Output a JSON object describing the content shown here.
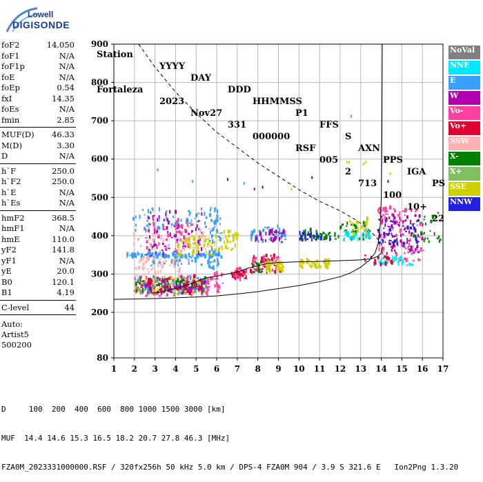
{
  "logo": {
    "line1": "Lowell",
    "line2": "DIGISONDE"
  },
  "header": {
    "labels": [
      "Station",
      "YYYY",
      "DAY",
      "DDD",
      "HHMMSS",
      "P1",
      "FFS",
      "S",
      "AXN",
      "PPS",
      "IGA",
      "PS"
    ],
    "values": [
      "Fortaleza",
      "2023",
      "Nov27",
      "331",
      "000000",
      "RSF",
      "005",
      "2",
      "713",
      "100",
      "10+",
      "22"
    ]
  },
  "params": {
    "group1": [
      {
        "label": "foF2",
        "value": "14.050"
      },
      {
        "label": "foF1",
        "value": "N/A"
      },
      {
        "label": "foF1p",
        "value": "N/A"
      },
      {
        "label": "foE",
        "value": "N/A"
      },
      {
        "label": "foEp",
        "value": "0.54"
      },
      {
        "label": "fxI",
        "value": "14.35"
      },
      {
        "label": "foEs",
        "value": "N/A"
      },
      {
        "label": "fmin",
        "value": "2.85"
      }
    ],
    "group2": [
      {
        "label": "MUF(D)",
        "value": "46.33"
      },
      {
        "label": "M(D)",
        "value": "3.30"
      },
      {
        "label": "D",
        "value": "N/A"
      }
    ],
    "group3": [
      {
        "label": "h`F",
        "value": "250.0"
      },
      {
        "label": "h`F2",
        "value": "250.0"
      },
      {
        "label": "h`E",
        "value": "N/A"
      },
      {
        "label": "h`Es",
        "value": "N/A"
      }
    ],
    "group4": [
      {
        "label": "hmF2",
        "value": "368.5"
      },
      {
        "label": "hmF1",
        "value": "N/A"
      },
      {
        "label": "hmE",
        "value": "110.0"
      },
      {
        "label": "yF2",
        "value": "141.8"
      },
      {
        "label": "yF1",
        "value": "N/A"
      },
      {
        "label": "yE",
        "value": "20.0"
      },
      {
        "label": "B0",
        "value": "120.1"
      },
      {
        "label": "B1",
        "value": "4.19"
      }
    ],
    "group5": [
      {
        "label": "C-level",
        "value": "44"
      }
    ],
    "auto": [
      "Auto:",
      "Artist5",
      "500200"
    ]
  },
  "legend": [
    {
      "label": "NoVal",
      "color": "#808080"
    },
    {
      "label": "NNE",
      "color": "#00e8ff"
    },
    {
      "label": "E",
      "color": "#3aa0ff"
    },
    {
      "label": "W",
      "color": "#b000b0"
    },
    {
      "label": "Vo-",
      "color": "#ff40a0"
    },
    {
      "label": "Vo+",
      "color": "#e00030"
    },
    {
      "label": "SSW",
      "color": "#ffb0b0"
    },
    {
      "label": "X-",
      "color": "#008000"
    },
    {
      "label": "X+",
      "color": "#80c060"
    },
    {
      "label": "SSE",
      "color": "#d0d000"
    },
    {
      "label": "NNW",
      "color": "#2020e0"
    }
  ],
  "footer": {
    "line1": "D     100  200  400  600  800 1000 1500 3000 [km]",
    "line2": "MUF  14.4 14.6 15.3 16.5 18.2 20.7 27.8 46.3 [MHz]",
    "line3": "FZA0M_2023331000000.RSF / 320fx256h 50 kHz 5.0 km / DPS-4 FZA0M 904 / 3.9 S 321.6 E   Ion2Png 1.3.20"
  },
  "chart_data": {
    "type": "scatter",
    "xlim": [
      1,
      17
    ],
    "ylim": [
      80,
      900
    ],
    "x_ticks": [
      1,
      2,
      3,
      4,
      5,
      6,
      7,
      8,
      9,
      10,
      11,
      12,
      13,
      14,
      15,
      16,
      17
    ],
    "y_ticks": [
      80,
      200,
      300,
      400,
      500,
      600,
      700,
      800,
      900
    ],
    "grid": true,
    "clusters": [
      {
        "f0": 1.9,
        "f1": 5.6,
        "h0": 240,
        "h1": 290,
        "color": "#ff40a0",
        "n": 120
      },
      {
        "f0": 2.0,
        "f1": 5.5,
        "h0": 245,
        "h1": 285,
        "color": "#d0d000",
        "n": 90
      },
      {
        "f0": 2.0,
        "f1": 5.5,
        "h0": 250,
        "h1": 285,
        "color": "#008000",
        "n": 60
      },
      {
        "f0": 2.0,
        "f1": 5.5,
        "h0": 245,
        "h1": 290,
        "color": "#3aa0ff",
        "n": 60
      },
      {
        "f0": 2.2,
        "f1": 5.4,
        "h0": 250,
        "h1": 280,
        "color": "#b000b0",
        "n": 50
      },
      {
        "f0": 2.2,
        "f1": 5.4,
        "h0": 245,
        "h1": 290,
        "color": "#e00030",
        "n": 50
      },
      {
        "f0": 5.5,
        "f1": 6.3,
        "h0": 250,
        "h1": 300,
        "color": "#ff40a0",
        "n": 25
      },
      {
        "f0": 6.8,
        "f1": 7.4,
        "h0": 280,
        "h1": 310,
        "color": "#ff40a0",
        "n": 30
      },
      {
        "f0": 6.6,
        "f1": 7.4,
        "h0": 285,
        "h1": 305,
        "color": "#e00030",
        "n": 20
      },
      {
        "f0": 7.6,
        "f1": 9.1,
        "h0": 300,
        "h1": 345,
        "color": "#e00030",
        "n": 40
      },
      {
        "f0": 7.6,
        "f1": 9.0,
        "h0": 305,
        "h1": 340,
        "color": "#ff40a0",
        "n": 30
      },
      {
        "f0": 8.3,
        "f1": 9.2,
        "h0": 300,
        "h1": 330,
        "color": "#d0d000",
        "n": 40
      },
      {
        "f0": 7.7,
        "f1": 8.2,
        "h0": 300,
        "h1": 330,
        "color": "#008000",
        "n": 15
      },
      {
        "f0": 10.0,
        "f1": 11.5,
        "h0": 310,
        "h1": 335,
        "color": "#d0d000",
        "n": 50
      },
      {
        "f0": 2.0,
        "f1": 4.2,
        "h0": 290,
        "h1": 340,
        "color": "#ffb0b0",
        "n": 60
      },
      {
        "f0": 2.6,
        "f1": 5.5,
        "h0": 320,
        "h1": 350,
        "color": "#3aa0ff",
        "n": 40
      },
      {
        "f0": 5.5,
        "f1": 6.1,
        "h0": 310,
        "h1": 335,
        "color": "#3aa0ff",
        "n": 20
      },
      {
        "f0": 1.6,
        "f1": 6.2,
        "h0": 340,
        "h1": 350,
        "color": "#3aa0ff",
        "n": 100
      },
      {
        "f0": 2.5,
        "f1": 5.3,
        "h0": 345,
        "h1": 460,
        "color": "#b000b0",
        "n": 80
      },
      {
        "f0": 2.5,
        "f1": 5.0,
        "h0": 350,
        "h1": 440,
        "color": "#ff40a0",
        "n": 40
      },
      {
        "f0": 1.9,
        "f1": 5.6,
        "h0": 360,
        "h1": 420,
        "color": "#ffb0b0",
        "n": 50
      },
      {
        "f0": 1.9,
        "f1": 5.6,
        "h0": 410,
        "h1": 470,
        "color": "#3aa0ff",
        "n": 50
      },
      {
        "f0": 4.0,
        "f1": 6.0,
        "h0": 345,
        "h1": 400,
        "color": "#d0d000",
        "n": 50
      },
      {
        "f0": 5.6,
        "f1": 6.2,
        "h0": 350,
        "h1": 470,
        "color": "#3aa0ff",
        "n": 40
      },
      {
        "f0": 6.0,
        "f1": 7.0,
        "h0": 360,
        "h1": 410,
        "color": "#d0d000",
        "n": 30
      },
      {
        "f0": 7.6,
        "f1": 9.4,
        "h0": 380,
        "h1": 420,
        "color": "#3aa0ff",
        "n": 50
      },
      {
        "f0": 7.8,
        "f1": 9.4,
        "h0": 380,
        "h1": 410,
        "color": "#b000b0",
        "n": 30
      },
      {
        "f0": 10.0,
        "f1": 11.5,
        "h0": 385,
        "h1": 410,
        "color": "#008000",
        "n": 40
      },
      {
        "f0": 10.0,
        "f1": 11.5,
        "h0": 385,
        "h1": 405,
        "color": "#2020e0",
        "n": 25
      },
      {
        "f0": 11.7,
        "f1": 13.4,
        "h0": 385,
        "h1": 430,
        "color": "#008000",
        "n": 40
      },
      {
        "f0": 12.0,
        "f1": 13.5,
        "h0": 385,
        "h1": 410,
        "color": "#00e8ff",
        "n": 30
      },
      {
        "f0": 12.3,
        "f1": 13.3,
        "h0": 400,
        "h1": 440,
        "color": "#d0d000",
        "n": 20
      },
      {
        "f0": 13.8,
        "f1": 16.0,
        "h0": 330,
        "h1": 470,
        "color": "#ff40a0",
        "n": 90
      },
      {
        "f0": 13.8,
        "f1": 16.0,
        "h0": 350,
        "h1": 450,
        "color": "#b000b0",
        "n": 70
      },
      {
        "f0": 13.8,
        "f1": 15.8,
        "h0": 370,
        "h1": 440,
        "color": "#2020e0",
        "n": 40
      },
      {
        "f0": 13.8,
        "f1": 15.5,
        "h0": 320,
        "h1": 340,
        "color": "#00e8ff",
        "n": 30
      },
      {
        "f0": 15.5,
        "f1": 17.0,
        "h0": 380,
        "h1": 460,
        "color": "#008000",
        "n": 25
      },
      {
        "f0": 13.0,
        "f1": 14.5,
        "h0": 320,
        "h1": 350,
        "color": "#e00030",
        "n": 20
      }
    ],
    "sparse_points": [
      {
        "x": 3.1,
        "y": 570,
        "color": "#3aa0ff"
      },
      {
        "x": 4.8,
        "y": 540,
        "color": "#3aa0ff"
      },
      {
        "x": 6.5,
        "y": 545,
        "color": "#2020e0"
      },
      {
        "x": 7.3,
        "y": 535,
        "color": "#3aa0ff"
      },
      {
        "x": 7.8,
        "y": 520,
        "color": "#b000b0"
      },
      {
        "x": 8.2,
        "y": 525,
        "color": "#2020e0"
      },
      {
        "x": 9.6,
        "y": 520,
        "color": "#d0d000"
      },
      {
        "x": 12.3,
        "y": 590,
        "color": "#d0d000"
      },
      {
        "x": 12.4,
        "y": 590,
        "color": "#d0d000"
      },
      {
        "x": 12.5,
        "y": 710,
        "color": "#3aa0ff"
      },
      {
        "x": 13.1,
        "y": 585,
        "color": "#d0d000"
      },
      {
        "x": 13.2,
        "y": 590,
        "color": "#d0d000"
      },
      {
        "x": 14.2,
        "y": 600,
        "color": "#80c060"
      },
      {
        "x": 14.3,
        "y": 540,
        "color": "#2020e0"
      },
      {
        "x": 14.4,
        "y": 560,
        "color": "#d0d000"
      },
      {
        "x": 10.6,
        "y": 550,
        "color": "#2020e0"
      }
    ],
    "virtual_height_trace": [
      [
        2.85,
        250
      ],
      [
        3.2,
        252
      ],
      [
        3.6,
        258
      ],
      [
        4.0,
        262
      ],
      [
        4.5,
        270
      ],
      [
        5.0,
        280
      ],
      [
        5.5,
        290
      ],
      [
        6.0,
        295
      ],
      [
        6.5,
        300
      ],
      [
        7.0,
        305
      ],
      [
        7.5,
        315
      ],
      [
        8.0,
        322
      ],
      [
        8.5,
        328
      ],
      [
        9.0,
        330
      ],
      [
        10.0,
        332
      ],
      [
        11.0,
        333
      ],
      [
        12.0,
        335
      ],
      [
        13.0,
        337
      ],
      [
        13.5,
        340
      ],
      [
        13.8,
        345
      ],
      [
        14.0,
        355
      ],
      [
        14.05,
        370
      ]
    ],
    "profile_curve": [
      [
        1.0,
        234
      ],
      [
        2.0,
        235
      ],
      [
        3.0,
        236
      ],
      [
        4.0,
        238
      ],
      [
        5.0,
        240
      ],
      [
        6.0,
        243
      ],
      [
        7.0,
        248
      ],
      [
        8.0,
        254
      ],
      [
        9.0,
        262
      ],
      [
        10.0,
        270
      ],
      [
        11.0,
        280
      ],
      [
        12.0,
        293
      ],
      [
        12.5,
        303
      ],
      [
        13.0,
        318
      ],
      [
        13.4,
        335
      ],
      [
        13.7,
        355
      ],
      [
        13.85,
        380
      ],
      [
        13.95,
        430
      ],
      [
        14.0,
        500
      ],
      [
        14.03,
        650
      ],
      [
        14.05,
        900
      ]
    ],
    "muf_curve": [
      [
        2.2,
        900
      ],
      [
        3.0,
        840
      ],
      [
        4.0,
        775
      ],
      [
        5.0,
        720
      ],
      [
        6.0,
        670
      ],
      [
        7.0,
        630
      ],
      [
        8.0,
        590
      ],
      [
        9.0,
        555
      ],
      [
        10.0,
        520
      ],
      [
        11.0,
        490
      ],
      [
        12.0,
        465
      ],
      [
        12.8,
        440
      ],
      [
        13.3,
        420
      ],
      [
        13.7,
        400
      ],
      [
        14.0,
        380
      ],
      [
        14.05,
        370
      ]
    ]
  }
}
